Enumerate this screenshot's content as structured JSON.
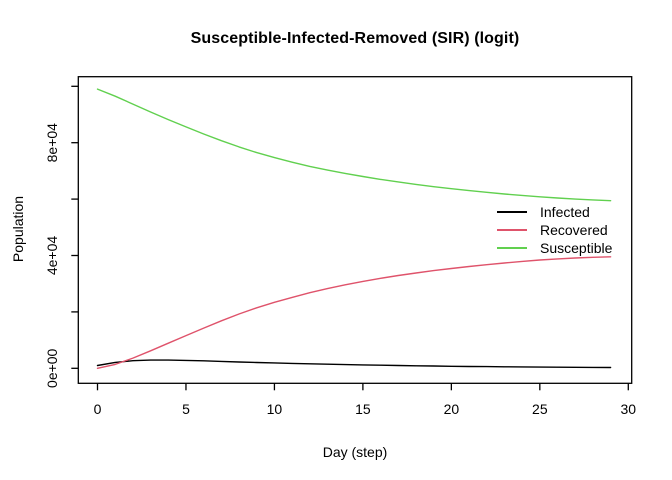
{
  "window": {
    "background_color": "#ffffff",
    "foreground_color": "#000000"
  },
  "chart_data": {
    "type": "line",
    "title": "Susceptible-Infected-Removed (SIR) (logit)",
    "xlabel": "Day (step)",
    "ylabel": "Population",
    "grid": false,
    "legend_position": "right-middle",
    "legend_border": false,
    "xlim": [
      -1.2,
      30.2
    ],
    "ylim": [
      -4000,
      103200
    ],
    "x_ticks": [
      0,
      5,
      10,
      15,
      20,
      25,
      30
    ],
    "x_tick_labels": [
      "0",
      "5",
      "10",
      "15",
      "20",
      "25",
      "30"
    ],
    "y_ticks": [
      0,
      20000,
      40000,
      60000,
      80000,
      100000
    ],
    "y_tick_labels": [
      "0e+00",
      "",
      "4e+04",
      "",
      "8e+04",
      ""
    ],
    "x": [
      0,
      1,
      2,
      3,
      4,
      5,
      6,
      7,
      8,
      9,
      10,
      11,
      12,
      13,
      14,
      15,
      16,
      17,
      18,
      19,
      20,
      21,
      22,
      23,
      24,
      25,
      26,
      27,
      28,
      29
    ],
    "series": [
      {
        "name": "Infected",
        "color": "#000000",
        "values": [
          1000,
          2100,
          2700,
          2900,
          2900,
          2800,
          2650,
          2450,
          2250,
          2050,
          1900,
          1750,
          1600,
          1450,
          1300,
          1200,
          1100,
          1000,
          900,
          800,
          720,
          650,
          590,
          530,
          480,
          430,
          390,
          350,
          320,
          300
        ]
      },
      {
        "name": "Recovered",
        "color": "#DF536B",
        "values": [
          0,
          1400,
          3600,
          6200,
          8900,
          11600,
          14250,
          16850,
          19250,
          21450,
          23400,
          25150,
          26800,
          28250,
          29600,
          30800,
          31900,
          32900,
          33800,
          34650,
          35400,
          36100,
          36750,
          37350,
          37900,
          38400,
          38800,
          39100,
          39350,
          39550
        ]
      },
      {
        "name": "Susceptible",
        "color": "#61D04F",
        "values": [
          99000,
          96500,
          93700,
          90900,
          88200,
          85600,
          83100,
          80700,
          78500,
          76500,
          74700,
          73100,
          71600,
          70300,
          69100,
          68000,
          67000,
          66100,
          65200,
          64400,
          63700,
          63000,
          62400,
          61800,
          61300,
          60800,
          60400,
          60000,
          59700,
          59450
        ]
      }
    ]
  }
}
